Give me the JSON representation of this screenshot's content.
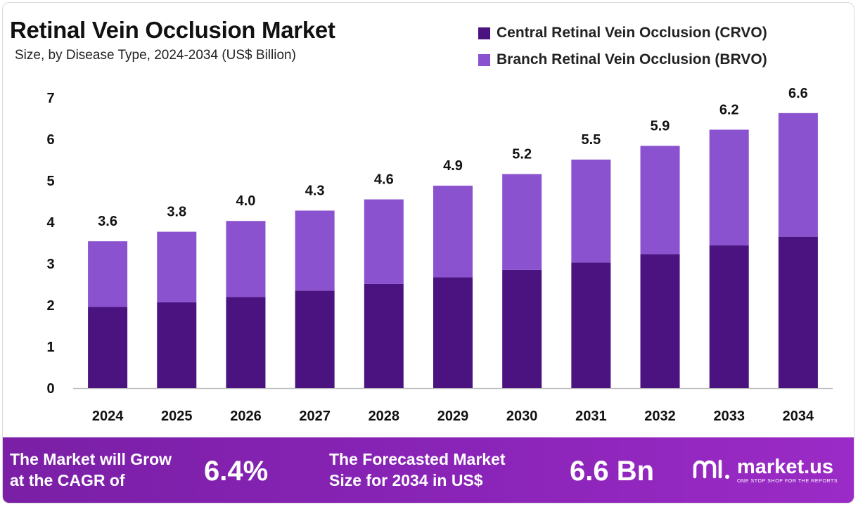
{
  "header": {
    "title": "Retinal Vein Occlusion Market",
    "subtitle": "Size, by Disease Type, 2024-2034 (US$ Billion)"
  },
  "legend": [
    {
      "label": "Central Retinal Vein Occlusion (CRVO)",
      "color": "#4a1380"
    },
    {
      "label": "Branch Retinal Vein Occlusion (BRVO)",
      "color": "#8a52cf"
    }
  ],
  "chart_data": {
    "type": "bar",
    "stacked": true,
    "title": "Retinal Vein Occlusion Market",
    "subtitle": "Size, by Disease Type, 2024-2034 (US$ Billion)",
    "xlabel": "",
    "ylabel": "",
    "ylim": [
      0,
      7
    ],
    "yticks": [
      0,
      1,
      2,
      3,
      4,
      5,
      6,
      7
    ],
    "categories": [
      "2024",
      "2025",
      "2026",
      "2027",
      "2028",
      "2029",
      "2030",
      "2031",
      "2032",
      "2033",
      "2034"
    ],
    "series": [
      {
        "name": "Central Retinal Vein Occlusion (CRVO)",
        "color": "#4a1380",
        "values": [
          1.96,
          2.07,
          2.2,
          2.35,
          2.51,
          2.67,
          2.85,
          3.03,
          3.23,
          3.44,
          3.65
        ]
      },
      {
        "name": "Branch Retinal Vein Occlusion (BRVO)",
        "color": "#8a52cf",
        "values": [
          1.58,
          1.7,
          1.83,
          1.93,
          2.04,
          2.21,
          2.31,
          2.48,
          2.61,
          2.79,
          2.98
        ]
      }
    ],
    "totals": [
      "3.6",
      "3.8",
      "4.0",
      "4.3",
      "4.6",
      "4.9",
      "5.2",
      "5.5",
      "5.9",
      "6.2",
      "6.6"
    ],
    "legend_position": "top-right",
    "grid": false
  },
  "footer": {
    "cagr_label_line1": "The Market will Grow",
    "cagr_label_line2": "at the CAGR of",
    "cagr_value": "6.4%",
    "forecast_label_line1": "The Forecasted Market",
    "forecast_label_line2": "Size for 2034 in US$",
    "forecast_value": "6.6 Bn",
    "brand_name": "market.us",
    "brand_tagline": "ONE STOP SHOP FOR THE REPORTS"
  }
}
